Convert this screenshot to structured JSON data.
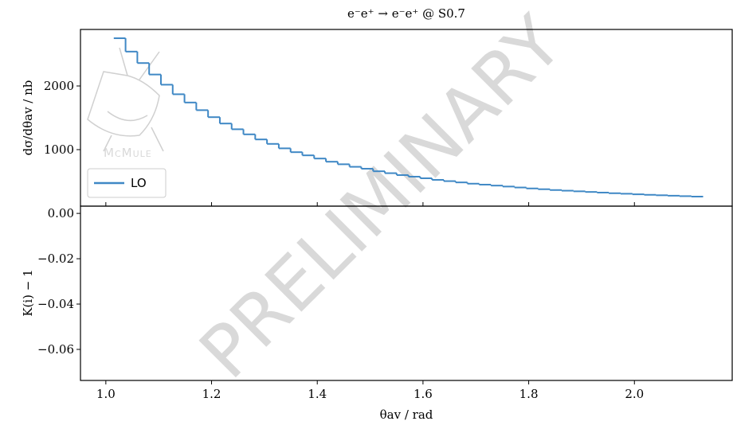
{
  "chart_data": [
    {
      "type": "histogram",
      "title": "e⁻e⁺ → e⁻e⁺ @ S0.7",
      "y_label": "dσ/dθav / nb",
      "watermark": "PRELIMINARY",
      "logo_text": "McMule",
      "bins": [
        1.015,
        1.0373,
        1.0596,
        1.0819,
        1.1042,
        1.1265,
        1.1488,
        1.1711,
        1.1934,
        1.2157,
        1.238,
        1.2603,
        1.2826,
        1.3049,
        1.3272,
        1.3495,
        1.3718,
        1.3941,
        1.4164,
        1.4387,
        1.461,
        1.4833,
        1.5056,
        1.5279,
        1.5502,
        1.5725,
        1.5948,
        1.6171,
        1.6394,
        1.6617,
        1.684,
        1.7063,
        1.7286,
        1.7509,
        1.7732,
        1.7955,
        1.8178,
        1.8401,
        1.8624,
        1.8847,
        1.907,
        1.9293,
        1.9516,
        1.9739,
        1.9962,
        2.0185,
        2.0408,
        2.0631,
        2.0854,
        2.1077,
        2.13
      ],
      "series": [
        {
          "name": "LO",
          "color": "#3f88c5",
          "values": [
            2750,
            2540,
            2360,
            2180,
            2020,
            1870,
            1740,
            1620,
            1510,
            1410,
            1320,
            1240,
            1160,
            1090,
            1020,
            960,
            910,
            860,
            810,
            770,
            730,
            700,
            660,
            630,
            600,
            575,
            550,
            525,
            505,
            485,
            465,
            450,
            435,
            420,
            405,
            390,
            378,
            365,
            355,
            345,
            335,
            325,
            315,
            307,
            298,
            290,
            283,
            276,
            269,
            262
          ]
        }
      ],
      "xlim": [
        0.952,
        2.185
      ],
      "xticks": [
        1,
        1.2,
        1.4,
        1.6,
        1.8,
        2
      ],
      "ylim": [
        112,
        2888
      ],
      "yticks": [
        1000,
        2000
      ],
      "legend": "lower left"
    },
    {
      "type": "ratio",
      "x_label": "θav / rad",
      "y_label": "K(i) − 1",
      "xlim": [
        0.952,
        2.185
      ],
      "xticks": [
        {
          "value": 1,
          "label": "1.0"
        },
        {
          "value": 1.2,
          "label": "1.2"
        },
        {
          "value": 1.4,
          "label": "1.4"
        },
        {
          "value": 1.6,
          "label": "1.6"
        },
        {
          "value": 1.8,
          "label": "1.8"
        },
        {
          "value": 2,
          "label": "2.0"
        }
      ],
      "ylim": [
        -0.0737,
        0.0032
      ],
      "yticks": [
        {
          "value": 0,
          "label": "0.00"
        },
        {
          "value": -0.02,
          "label": "−0.02"
        },
        {
          "value": -0.04,
          "label": "−0.04"
        },
        {
          "value": -0.06,
          "label": "−0.06"
        }
      ]
    }
  ]
}
